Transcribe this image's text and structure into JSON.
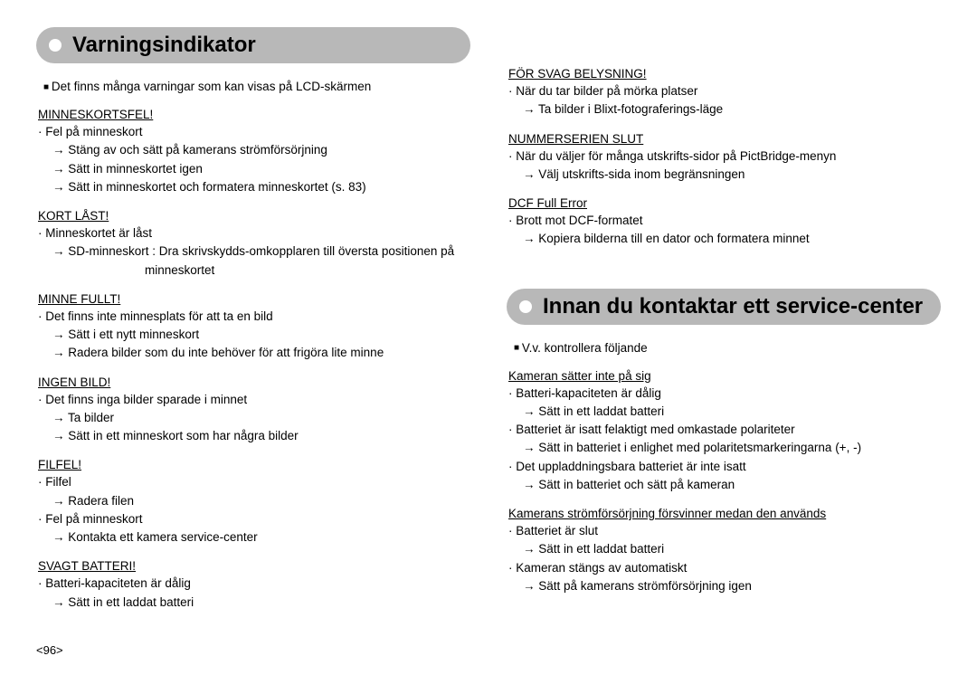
{
  "left": {
    "heading": "Varningsindikator",
    "intro": "Det finns många varningar som kan visas på LCD-skärmen",
    "sections": [
      {
        "title": "MINNESKORTSFEL!",
        "items": [
          {
            "type": "bullet",
            "text": "Fel på minneskort"
          },
          {
            "type": "arrow",
            "text": "Stäng av och sätt på kamerans strömförsörjning"
          },
          {
            "type": "arrow",
            "text": "Sätt in minneskortet igen"
          },
          {
            "type": "arrow",
            "text": "Sätt in minneskortet och formatera minneskortet (s. 83)"
          }
        ]
      },
      {
        "title": "KORT LÅST!",
        "items": [
          {
            "type": "bullet",
            "text": "Minneskortet är låst"
          },
          {
            "type": "arrow",
            "text": "SD-minneskort : Dra skrivskydds-omkopplaren till översta positionen på"
          },
          {
            "type": "cont",
            "text": "minneskortet"
          }
        ]
      },
      {
        "title": "MINNE FULLT!",
        "items": [
          {
            "type": "bullet",
            "text": "Det finns inte minnesplats för att ta en bild"
          },
          {
            "type": "arrow",
            "text": "Sätt i ett nytt minneskort"
          },
          {
            "type": "arrow",
            "text": "Radera bilder som du inte behöver för att frigöra lite minne"
          }
        ]
      },
      {
        "title": "INGEN BILD!",
        "items": [
          {
            "type": "bullet",
            "text": "Det finns inga bilder sparade i minnet"
          },
          {
            "type": "arrow",
            "text": "Ta bilder"
          },
          {
            "type": "arrow",
            "text": "Sätt in ett minneskort som har några bilder"
          }
        ]
      },
      {
        "title": "FILFEL!",
        "items": [
          {
            "type": "bullet",
            "text": "Filfel"
          },
          {
            "type": "arrow",
            "text": "Radera filen"
          },
          {
            "type": "bullet",
            "text": "Fel på minneskort"
          },
          {
            "type": "arrow",
            "text": "Kontakta ett kamera service-center"
          }
        ]
      },
      {
        "title": "SVAGT BATTERI!",
        "items": [
          {
            "type": "bullet",
            "text": "Batteri-kapaciteten är dålig"
          },
          {
            "type": "arrow",
            "text": "Sätt in ett laddat batteri"
          }
        ]
      }
    ]
  },
  "right_top": {
    "sections": [
      {
        "title": "FÖR SVAG BELYSNING!",
        "items": [
          {
            "type": "bullet",
            "text": "När du tar bilder på mörka platser"
          },
          {
            "type": "arrow",
            "text": "Ta bilder i Blixt-fotograferings-läge"
          }
        ]
      },
      {
        "title": "NUMMERSERIEN SLUT",
        "items": [
          {
            "type": "bullet",
            "text": "När du väljer för många utskrifts-sidor på PictBridge-menyn"
          },
          {
            "type": "arrow",
            "text": "Välj utskrifts-sida inom begränsningen"
          }
        ]
      },
      {
        "title": "DCF Full Error",
        "items": [
          {
            "type": "bullet",
            "text": "Brott mot DCF-formatet"
          },
          {
            "type": "arrow",
            "text": "Kopiera bilderna till en dator och formatera minnet"
          }
        ]
      }
    ]
  },
  "right_bottom": {
    "heading": "Innan du kontaktar ett service-center",
    "intro": "V.v. kontrollera följande",
    "sections": [
      {
        "title": "Kameran sätter inte på sig",
        "items": [
          {
            "type": "bullet",
            "text": "Batteri-kapaciteten är dålig"
          },
          {
            "type": "arrow",
            "text": "Sätt in ett laddat batteri"
          },
          {
            "type": "bullet",
            "text": "Batteriet är isatt felaktigt med omkastade polariteter"
          },
          {
            "type": "arrow",
            "text": "Sätt in batteriet i enlighet med polaritetsmarkeringarna (+, -)"
          },
          {
            "type": "bullet",
            "text": "Det uppladdningsbara batteriet är inte isatt"
          },
          {
            "type": "arrow",
            "text": "Sätt in batteriet och sätt på kameran"
          }
        ]
      },
      {
        "title": "Kamerans strömförsörjning försvinner medan den används",
        "items": [
          {
            "type": "bullet",
            "text": "Batteriet är slut"
          },
          {
            "type": "arrow",
            "text": "Sätt in ett laddat batteri"
          },
          {
            "type": "bullet",
            "text": "Kameran stängs av automatiskt"
          },
          {
            "type": "arrow",
            "text": "Sätt på kamerans strömförsörjning igen"
          }
        ]
      }
    ]
  },
  "page_number": "<96>"
}
